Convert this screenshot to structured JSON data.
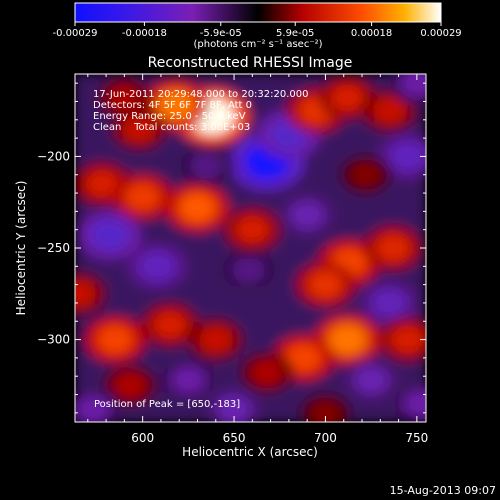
{
  "colorbar": {
    "ticks": [
      "-0.00029",
      "-0.00018",
      "-5.9e-05",
      "5.9e-05",
      "0.00018",
      "0.00029"
    ],
    "unit_label": "(photons cm⁻² s⁻¹ asec⁻²)"
  },
  "title": "Reconstructed RHESSI Image",
  "info_lines": [
    "17-Jun-2011 20:29:48.000 to 20:32:20.000",
    "Detectors: 4F 5F 6F 7F 8F, Att 0",
    "Energy Range: 25.0 - 50.0 keV",
    "Clean    Total counts: 3.08E+03"
  ],
  "peak_label": "Position of Peak = [650,-183]",
  "footer_date": "15-Aug-2013 09:07",
  "chart_data": {
    "type": "heatmap",
    "title": "Reconstructed RHESSI Image",
    "xlabel": "Heliocentric X (arcsec)",
    "ylabel": "Heliocentric Y (arcsec)",
    "xlim": [
      563,
      755
    ],
    "ylim": [
      -345,
      -155
    ],
    "xticks": [
      600,
      650,
      700,
      750
    ],
    "yticks": [
      -200,
      -250,
      -300
    ],
    "zlim": [
      -0.00029,
      0.00029
    ],
    "peak": [
      650,
      -183
    ],
    "blobs": [
      {
        "x": 638,
        "y": -178,
        "v": 0.00029
      },
      {
        "x": 618,
        "y": -172,
        "v": 0.0002
      },
      {
        "x": 598,
        "y": -185,
        "v": 0.0001
      },
      {
        "x": 578,
        "y": -215,
        "v": 0.00012
      },
      {
        "x": 590,
        "y": -168,
        "v": 8e-05
      },
      {
        "x": 668,
        "y": -203,
        "v": -0.00029
      },
      {
        "x": 680,
        "y": -188,
        "v": -0.00018
      },
      {
        "x": 695,
        "y": -175,
        "v": 0.00014
      },
      {
        "x": 712,
        "y": -168,
        "v": 0.00012
      },
      {
        "x": 735,
        "y": -175,
        "v": 0.0001
      },
      {
        "x": 745,
        "y": -200,
        "v": -0.00015
      },
      {
        "x": 722,
        "y": -210,
        "v": 6e-05
      },
      {
        "x": 600,
        "y": -222,
        "v": 0.00015
      },
      {
        "x": 630,
        "y": -228,
        "v": 0.00018
      },
      {
        "x": 660,
        "y": -240,
        "v": 0.00012
      },
      {
        "x": 690,
        "y": -232,
        "v": -0.00012
      },
      {
        "x": 582,
        "y": -243,
        "v": -0.00018
      },
      {
        "x": 608,
        "y": -260,
        "v": -0.00015
      },
      {
        "x": 658,
        "y": -262,
        "v": -8e-05
      },
      {
        "x": 713,
        "y": -258,
        "v": 0.00016
      },
      {
        "x": 737,
        "y": -250,
        "v": 0.00013
      },
      {
        "x": 700,
        "y": -270,
        "v": 0.00014
      },
      {
        "x": 735,
        "y": -280,
        "v": -0.00014
      },
      {
        "x": 745,
        "y": -300,
        "v": 0.00012
      },
      {
        "x": 712,
        "y": -300,
        "v": 0.0002
      },
      {
        "x": 688,
        "y": -310,
        "v": 0.00016
      },
      {
        "x": 668,
        "y": -318,
        "v": 8e-05
      },
      {
        "x": 585,
        "y": -300,
        "v": 0.00016
      },
      {
        "x": 615,
        "y": -292,
        "v": 0.00012
      },
      {
        "x": 640,
        "y": -300,
        "v": 0.0001
      },
      {
        "x": 593,
        "y": -325,
        "v": 8e-05
      },
      {
        "x": 625,
        "y": -322,
        "v": -0.0001
      },
      {
        "x": 573,
        "y": -338,
        "v": -0.0001
      },
      {
        "x": 650,
        "y": -338,
        "v": -0.00012
      },
      {
        "x": 700,
        "y": -340,
        "v": 6e-05
      },
      {
        "x": 725,
        "y": -322,
        "v": -0.00012
      },
      {
        "x": 752,
        "y": -335,
        "v": -0.0001
      },
      {
        "x": 565,
        "y": -275,
        "v": 0.0001
      },
      {
        "x": 635,
        "y": -205,
        "v": -8e-05
      },
      {
        "x": 750,
        "y": -160,
        "v": -0.0001
      }
    ]
  }
}
